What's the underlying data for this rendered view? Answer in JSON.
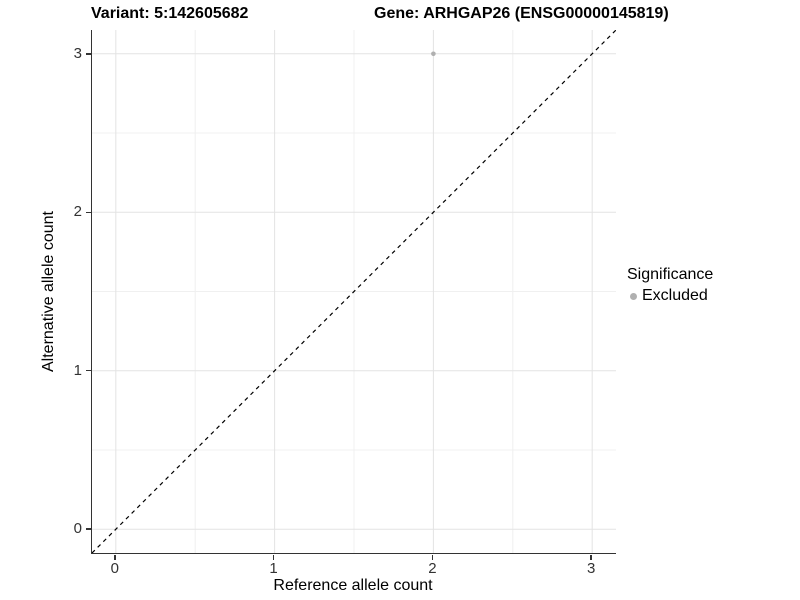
{
  "titles": {
    "variant": "Variant: 5:142605682",
    "gene": "Gene: ARHGAP26 (ENSG00000145819)"
  },
  "axes": {
    "x_label": "Reference allele count",
    "y_label": "Alternative allele count"
  },
  "legend": {
    "title": "Significance",
    "items": [
      {
        "label": "Excluded",
        "color": "#b0b0b0"
      }
    ]
  },
  "colors": {
    "background": "#ffffff",
    "axis_line": "#333333",
    "tick_label": "#333333",
    "grid_major": "#e3e3e3",
    "grid_minor": "#f0f0f0",
    "reference_line": "#000000",
    "point_excluded": "#b0b0b0"
  },
  "chart_data": {
    "type": "scatter",
    "title": "Variant: 5:142605682  /  Gene: ARHGAP26 (ENSG00000145819)",
    "xlabel": "Reference allele count",
    "ylabel": "Alternative allele count",
    "xlim": [
      -0.15,
      3.15
    ],
    "ylim": [
      -0.15,
      3.15
    ],
    "x_ticks": [
      0,
      1,
      2,
      3
    ],
    "y_ticks": [
      0,
      1,
      2,
      3
    ],
    "x_minor_ticks": [
      0.5,
      1.5,
      2.5
    ],
    "y_minor_ticks": [
      0.5,
      1.5,
      2.5
    ],
    "grid": true,
    "legend_position": "right",
    "series": [
      {
        "name": "Excluded",
        "color": "#b0b0b0",
        "points": [
          {
            "x": 2,
            "y": 3
          }
        ]
      }
    ],
    "reference_line": {
      "type": "identity",
      "slope": 1,
      "intercept": 0,
      "style": "dashed",
      "color": "#000000"
    }
  }
}
